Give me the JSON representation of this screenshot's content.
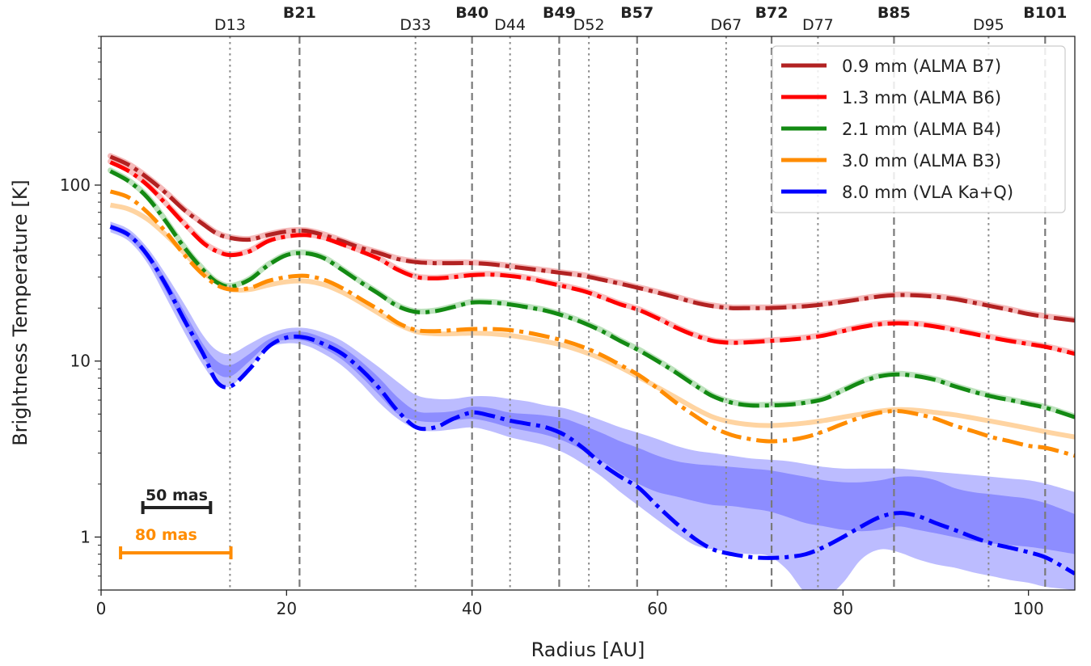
{
  "chart_data": {
    "type": "line",
    "xlabel": "Radius [AU]",
    "ylabel": "Brightness Temperature [K]",
    "xlim": [
      0,
      105
    ],
    "ylim": [
      0.5,
      700
    ],
    "yscale": "log",
    "grid": false,
    "legend_position": "top-right",
    "x_ticks": [
      0,
      20,
      40,
      60,
      80,
      100
    ],
    "y_ticks": [
      {
        "value": 1,
        "label": "1"
      },
      {
        "value": 10,
        "label": "10"
      },
      {
        "value": 100,
        "label": "100"
      }
    ],
    "rings": [
      {
        "label": "D13",
        "r": 13.9,
        "type": "gap"
      },
      {
        "label": "B21",
        "r": 21.4,
        "type": "ring"
      },
      {
        "label": "D33",
        "r": 33.9,
        "type": "gap"
      },
      {
        "label": "B40",
        "r": 40.0,
        "type": "ring"
      },
      {
        "label": "D44",
        "r": 44.1,
        "type": "gap"
      },
      {
        "label": "B49",
        "r": 49.4,
        "type": "ring"
      },
      {
        "label": "D52",
        "r": 52.6,
        "type": "gap"
      },
      {
        "label": "B57",
        "r": 57.8,
        "type": "ring"
      },
      {
        "label": "D67",
        "r": 67.4,
        "type": "gap"
      },
      {
        "label": "B72",
        "r": 72.3,
        "type": "ring"
      },
      {
        "label": "D77",
        "r": 77.3,
        "type": "gap"
      },
      {
        "label": "B85",
        "r": 85.5,
        "type": "ring"
      },
      {
        "label": "D95",
        "r": 95.7,
        "type": "gap"
      },
      {
        "label": "B101",
        "r": 101.8,
        "type": "ring"
      }
    ],
    "series": [
      {
        "name": "0.9 mm (ALMA B7)",
        "color": "#b22222",
        "x": [
          1,
          3,
          5,
          7,
          9,
          11,
          12.5,
          14,
          16,
          18,
          20,
          22,
          24,
          26,
          28,
          30,
          32,
          34,
          36,
          38,
          40,
          42,
          44,
          46,
          48,
          50,
          52,
          54,
          56,
          58,
          60,
          62,
          64,
          66,
          68,
          70,
          72,
          74,
          76,
          78,
          80,
          82,
          84,
          86,
          88,
          90,
          92,
          94,
          96,
          98,
          100,
          102,
          105
        ],
        "y": [
          145,
          130,
          110,
          90,
          72,
          60,
          53,
          50,
          49,
          52,
          54.5,
          55,
          52,
          48,
          44,
          41,
          38,
          36.5,
          36,
          36,
          36,
          35.5,
          34.5,
          33.5,
          32.5,
          31.5,
          30.5,
          29,
          27.5,
          26,
          24.5,
          23,
          21.5,
          20.5,
          20,
          20,
          20,
          20.2,
          20.5,
          21,
          21.7,
          22.5,
          23.3,
          23.7,
          23.6,
          23.2,
          22.5,
          21.5,
          20.5,
          19.5,
          18.5,
          17.8,
          17
        ]
      },
      {
        "name": "1.3 mm (ALMA B6)",
        "color": "#ff0000",
        "x": [
          1,
          3,
          5,
          7,
          9,
          11,
          12.5,
          14,
          16,
          18,
          20,
          22,
          24,
          26,
          28,
          30,
          32,
          34,
          36,
          38,
          40,
          42,
          44,
          46,
          48,
          50,
          52,
          54,
          56,
          58,
          60,
          62,
          64,
          66,
          68,
          70,
          72,
          74,
          76,
          78,
          80,
          82,
          84,
          86,
          88,
          90,
          92,
          94,
          96,
          98,
          100,
          102,
          105
        ],
        "y": [
          135,
          120,
          100,
          78,
          60,
          47,
          42,
          40,
          42,
          48,
          51,
          52,
          50,
          46,
          42,
          38,
          33,
          30,
          29.5,
          30,
          30.8,
          31,
          30.5,
          29.5,
          28,
          26.5,
          25,
          23,
          21,
          19.5,
          17.5,
          15.5,
          14,
          13,
          12.7,
          12.8,
          13,
          13.2,
          13.5,
          14,
          14.8,
          15.6,
          16.2,
          16.4,
          16.2,
          15.7,
          15,
          14.3,
          13.6,
          13,
          12.5,
          12,
          11
        ]
      },
      {
        "name": "2.1 mm (ALMA B4)",
        "color": "#138a13",
        "x": [
          1,
          3,
          5,
          7,
          9,
          11,
          12.5,
          14,
          16,
          18,
          20,
          22,
          24,
          26,
          28,
          30,
          32,
          34,
          36,
          38,
          40,
          42,
          44,
          46,
          48,
          50,
          52,
          54,
          56,
          58,
          60,
          62,
          64,
          66,
          68,
          70,
          72,
          74,
          76,
          78,
          80,
          82,
          84,
          86,
          88,
          90,
          92,
          94,
          96,
          98,
          100,
          102,
          105
        ],
        "y": [
          120,
          105,
          85,
          62,
          44,
          33,
          28,
          26.5,
          29,
          35,
          40,
          41,
          38.5,
          33,
          28,
          24,
          20.5,
          19,
          19.2,
          20.3,
          21.5,
          21.5,
          21,
          20.2,
          19.3,
          18,
          16.5,
          14.8,
          13,
          11.5,
          10,
          8.6,
          7.3,
          6.3,
          5.8,
          5.6,
          5.6,
          5.65,
          5.8,
          6.1,
          6.8,
          7.6,
          8.2,
          8.4,
          8.2,
          7.8,
          7.2,
          6.7,
          6.3,
          6,
          5.7,
          5.4,
          4.8
        ]
      },
      {
        "name": "3.0 mm (ALMA B3)",
        "color": "#ff8c00",
        "x": [
          1,
          3,
          5,
          7,
          9,
          11,
          12.5,
          14,
          16,
          18,
          20,
          22,
          24,
          26,
          28,
          30,
          32,
          34,
          36,
          38,
          40,
          42,
          44,
          46,
          48,
          50,
          52,
          54,
          56,
          58,
          60,
          62,
          64,
          66,
          68,
          70,
          72,
          74,
          76,
          78,
          80,
          82,
          84,
          86,
          88,
          90,
          92,
          94,
          96,
          98,
          100,
          102,
          105
        ],
        "y": [
          92,
          85,
          70,
          54,
          40,
          31,
          27,
          25.5,
          26,
          28.5,
          30,
          30.5,
          29,
          26,
          22.5,
          19.5,
          16.5,
          15,
          14.8,
          15,
          15.2,
          15.2,
          15,
          14.5,
          13.8,
          13,
          12,
          10.8,
          9.5,
          8.3,
          7,
          5.8,
          4.9,
          4.2,
          3.8,
          3.6,
          3.5,
          3.55,
          3.7,
          4,
          4.4,
          4.8,
          5.1,
          5.2,
          5,
          4.7,
          4.3,
          4,
          3.7,
          3.5,
          3.3,
          3.2,
          2.9
        ]
      },
      {
        "name": "8.0 mm (VLA Ka+Q)",
        "color": "#0000ff",
        "x": [
          1,
          3,
          5,
          7,
          9,
          11,
          12.5,
          14,
          16,
          18,
          20,
          22,
          24,
          26,
          28,
          30,
          32,
          34,
          36,
          38,
          40,
          42,
          44,
          46,
          48,
          50,
          52,
          54,
          56,
          58,
          60,
          62,
          64,
          66,
          68,
          70,
          72,
          74,
          76,
          78,
          80,
          82,
          84,
          86,
          88,
          90,
          92,
          94,
          96,
          98,
          100,
          102,
          105
        ],
        "y": [
          58,
          52,
          40,
          27,
          17,
          11,
          7.6,
          7.2,
          9,
          12,
          13.6,
          13.6,
          12.5,
          11,
          9,
          7,
          5.2,
          4.2,
          4.2,
          4.7,
          5.1,
          4.9,
          4.6,
          4.4,
          4.2,
          3.8,
          3.2,
          2.6,
          2.2,
          1.9,
          1.5,
          1.2,
          0.98,
          0.85,
          0.8,
          0.77,
          0.76,
          0.77,
          0.8,
          0.88,
          1.0,
          1.15,
          1.3,
          1.37,
          1.32,
          1.2,
          1.1,
          1.0,
          0.92,
          0.87,
          0.82,
          0.76,
          0.62
        ]
      }
    ],
    "uncertainty_bands": {
      "blue_x": [
        1,
        3,
        5,
        7,
        9,
        11,
        12.5,
        14,
        16,
        18,
        20,
        22,
        24,
        26,
        28,
        30,
        32,
        34,
        36,
        38,
        40,
        42,
        44,
        46,
        48,
        50,
        52,
        54,
        56,
        58,
        60,
        62,
        64,
        66,
        68,
        70,
        72,
        74,
        76,
        78,
        80,
        82,
        84,
        86,
        88,
        90,
        92,
        94,
        96,
        98,
        100,
        102,
        105
      ],
      "blue_inner_upper": [
        60,
        54,
        42,
        29,
        19,
        12.5,
        10,
        9.5,
        11,
        13.2,
        14.5,
        14.6,
        13.5,
        12,
        10,
        8,
        6.2,
        5.2,
        5.1,
        5.2,
        5.5,
        5.4,
        5.1,
        5.0,
        4.9,
        4.7,
        4.3,
        3.9,
        3.5,
        3.2,
        2.9,
        2.7,
        2.6,
        2.55,
        2.5,
        2.45,
        2.4,
        2.3,
        2.2,
        2.1,
        2.05,
        2.05,
        2.1,
        2.2,
        2.2,
        2.1,
        1.9,
        1.8,
        1.75,
        1.7,
        1.65,
        1.55,
        1.35
      ],
      "blue_inner_lower": [
        56,
        50,
        38,
        25,
        16,
        10.5,
        8.5,
        8.2,
        10,
        12.4,
        13.2,
        13,
        11.8,
        10.2,
        8.2,
        6.4,
        5.0,
        4.6,
        4.5,
        4.6,
        4.7,
        4.5,
        4.2,
        4.0,
        3.8,
        3.5,
        3.1,
        2.7,
        2.3,
        2.0,
        1.8,
        1.7,
        1.6,
        1.52,
        1.5,
        1.45,
        1.4,
        1.3,
        1.2,
        1.15,
        1.1,
        1.08,
        1.1,
        1.15,
        1.1,
        1.05,
        1.0,
        0.95,
        0.92,
        0.9,
        0.88,
        0.85,
        0.8
      ],
      "blue_outer_upper": [
        62,
        56,
        44,
        31,
        21,
        14,
        11.5,
        11,
        12.5,
        14.2,
        15.3,
        15.4,
        14.5,
        13,
        11,
        9.2,
        7.6,
        6.4,
        6.1,
        6.1,
        6.3,
        6.3,
        6.1,
        5.9,
        5.6,
        5.4,
        5.0,
        4.6,
        4.2,
        3.9,
        3.6,
        3.3,
        3.1,
        3.0,
        2.9,
        2.8,
        2.75,
        2.7,
        2.6,
        2.5,
        2.45,
        2.45,
        2.45,
        2.45,
        2.4,
        2.35,
        2.3,
        2.25,
        2.2,
        2.15,
        2.1,
        2.0,
        1.8
      ],
      "blue_outer_lower": [
        54,
        48,
        36,
        23,
        14.5,
        9.5,
        7.5,
        7.2,
        9.2,
        11.8,
        12.6,
        12.3,
        11,
        9.4,
        7.5,
        5.8,
        4.7,
        4.1,
        4.0,
        4.1,
        4.2,
        4.0,
        3.7,
        3.5,
        3.3,
        3.0,
        2.6,
        2.2,
        1.8,
        1.5,
        1.25,
        1.05,
        0.9,
        0.85,
        0.82,
        0.8,
        0.78,
        0.65,
        0.48,
        0.45,
        0.55,
        0.75,
        0.85,
        0.82,
        0.75,
        0.7,
        0.67,
        0.63,
        0.6,
        0.57,
        0.55,
        0.52,
        0.5
      ],
      "orange_x": [
        1,
        3,
        5,
        7,
        9,
        11,
        12.5,
        14,
        16,
        18,
        20,
        22,
        24,
        26,
        28,
        30,
        32,
        34,
        36,
        38,
        40,
        42,
        44,
        46,
        48,
        50,
        52,
        54,
        56,
        58,
        60,
        62,
        64,
        66,
        68,
        70,
        72,
        74,
        76,
        78,
        80,
        82,
        84,
        86,
        88,
        90,
        92,
        94,
        96,
        98,
        100,
        102,
        105
      ],
      "orange_model": [
        77,
        73,
        64,
        52,
        41,
        32,
        28,
        25.5,
        25.5,
        27,
        28.2,
        28.5,
        27.2,
        24.6,
        21.5,
        18.6,
        16.2,
        14.7,
        14.3,
        14.3,
        14.4,
        14.3,
        14,
        13.5,
        12.9,
        12.2,
        11.3,
        10.3,
        9.2,
        8.1,
        7.1,
        6.2,
        5.4,
        4.8,
        4.5,
        4.35,
        4.3,
        4.35,
        4.45,
        4.6,
        4.8,
        5.0,
        5.2,
        5.3,
        5.25,
        5.1,
        4.95,
        4.75,
        4.55,
        4.35,
        4.15,
        3.95,
        3.7
      ]
    },
    "scale_bars": [
      {
        "label": "50 mas",
        "x0": 4.5,
        "x1": 11.8,
        "color": "#222222"
      },
      {
        "label": "80 mas",
        "x0": 2.1,
        "x1": 14.0,
        "color": "#ff8c00"
      }
    ]
  }
}
